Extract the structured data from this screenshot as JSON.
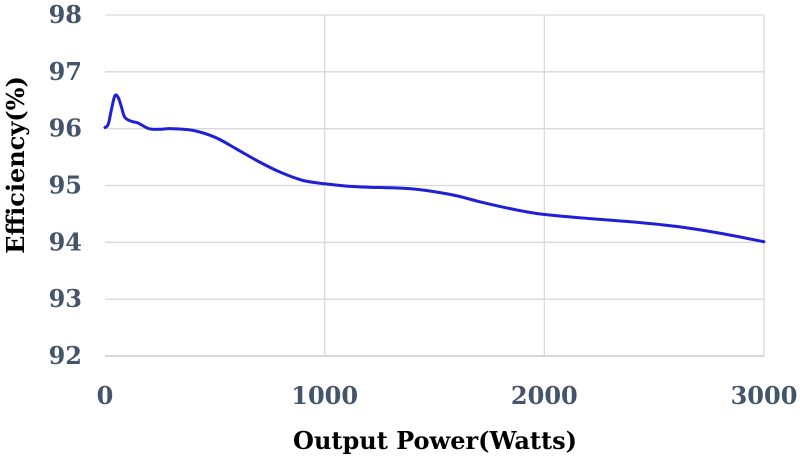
{
  "chart_data": {
    "type": "line",
    "title": "",
    "xlabel": "Output Power(Watts)",
    "ylabel": "Efficiency(%)",
    "xlim": [
      0,
      3000
    ],
    "ylim": [
      92,
      98
    ],
    "x_ticks": [
      0,
      1000,
      2000,
      3000
    ],
    "y_ticks": [
      92,
      93,
      94,
      95,
      96,
      97,
      98
    ],
    "x_tick_labels": [
      "0",
      "1000",
      "2000",
      "3000"
    ],
    "y_tick_labels": [
      "92",
      "93",
      "94",
      "95",
      "96",
      "97",
      "98"
    ],
    "grid": true,
    "legend": "none",
    "series": [
      {
        "color": "#1f1fd6",
        "x": [
          0,
          15,
          30,
          45,
          60,
          75,
          90,
          120,
          150,
          200,
          250,
          300,
          400,
          500,
          600,
          700,
          800,
          900,
          1000,
          1100,
          1200,
          1300,
          1400,
          1500,
          1600,
          1700,
          1800,
          1900,
          2000,
          2200,
          2400,
          2600,
          2800,
          3000
        ],
        "y": [
          96.02,
          96.08,
          96.35,
          96.58,
          96.55,
          96.38,
          96.2,
          96.13,
          96.1,
          96.0,
          95.99,
          96.0,
          95.97,
          95.85,
          95.64,
          95.42,
          95.23,
          95.09,
          95.03,
          94.99,
          94.97,
          94.96,
          94.94,
          94.89,
          94.82,
          94.72,
          94.63,
          94.55,
          94.49,
          94.42,
          94.36,
          94.28,
          94.16,
          94.01
        ]
      }
    ]
  }
}
